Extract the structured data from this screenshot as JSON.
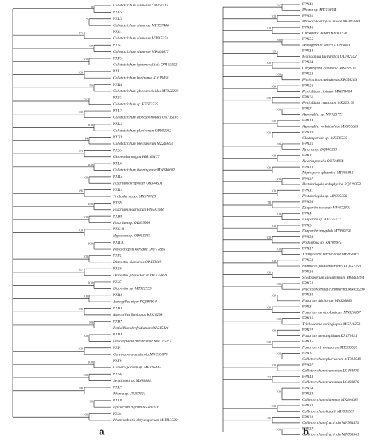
{
  "panels": [
    {
      "label": "a",
      "clades": [
        {
          "support": 8,
          "leaves": [
            "Colletotrichum siamense OR362512",
            "PXL5"
          ]
        },
        {
          "support": 7,
          "leaves": [
            "PXL3",
            "Colletotrichum siamense MH797486"
          ]
        },
        {
          "support": 65,
          "leaves": [
            "PXS1",
            "Colletotrichum siamense MT015274"
          ]
        },
        {
          "support": 97,
          "leaves": [
            "PXS2",
            "Colletotrichum siamense MK404677"
          ]
        },
        {
          "support": 100,
          "leaves": [
            "PXF3",
            "Colletotrichum hymenocallidis OP163552"
          ]
        },
        {
          "support": 100,
          "leaves": [
            "PXL1",
            "Colletotrichum boninense KJ619456"
          ]
        },
        {
          "support": 59,
          "leaves": [
            "PXR8",
            "Colletotrichum gloeosporioides MT322225"
          ]
        },
        {
          "support": 97,
          "leaves": [
            "PXS3",
            "Colletotrichum sp. EF672325"
          ]
        },
        {
          "support": 100,
          "leaves": [
            "PXL2",
            "Colletotrichum gloeosporioides ON715145"
          ]
        },
        {
          "support": 100,
          "leaves": [
            "PXL4",
            "Colletotrichum plurivorum OP902262"
          ]
        },
        {
          "support": 14,
          "leaves": [
            "PXX4",
            "Colletotrichum brevisporum MZ269314"
          ]
        },
        {
          "support": 92,
          "leaves": [
            "PXS5",
            "Glomerella magna HM163177"
          ]
        },
        {
          "support": 100,
          "leaves": [
            "PXL6",
            "Colletotrichum liaoningense MW386662"
          ]
        },
        {
          "support": 100,
          "leaves": [
            "PXR5",
            "Fusarium oxysporum OR344501"
          ]
        },
        {
          "support": 86,
          "leaves": [
            "PXR1",
            "Trichoderma sp. MK670718"
          ]
        },
        {
          "support": 100,
          "leaves": [
            "PXS9",
            "Fusarium incarnatum FN597588"
          ]
        },
        {
          "support": 100,
          "leaves": [
            "PXR6",
            "Fusarium sp. OR899990"
          ]
        },
        {
          "support": 100,
          "leaves": [
            "PXS10",
            "Hypocrea sp. OP055345"
          ]
        },
        {
          "support": 100,
          "leaves": [
            "PXR10",
            "Pestalotiopsis kenyana OR777885"
          ]
        },
        {
          "support": 100,
          "leaves": [
            "PXF2",
            "Diaporthe siamensis OP133669"
          ]
        },
        {
          "support": 67,
          "leaves": [
            "PXS6",
            "Diaporthe phaseolorum OK175859"
          ]
        },
        {
          "support": 100,
          "leaves": [
            "PXS7",
            "Diaporthe sp. MT322555"
          ]
        },
        {
          "support": 100,
          "leaves": [
            "PXR2",
            "Aspergillus niger PQ084904"
          ]
        },
        {
          "support": 100,
          "leaves": [
            "PXR3",
            "Aspergillus fumigatus KJ920298"
          ]
        },
        {
          "support": 89,
          "leaves": [
            "PXR7",
            "Penicillium brefeldianum OR215426"
          ]
        },
        {
          "support": 100,
          "leaves": [
            "PXR4",
            "Lasiodiplodia theobromae MW115077"
          ]
        },
        {
          "support": 100,
          "leaves": [
            "PXF1",
            "Corynespora cassiicola MW255073"
          ]
        },
        {
          "support": 100,
          "leaves": [
            "PXF9",
            "Camarosporium sp. MF326435"
          ]
        },
        {
          "support": 100,
          "leaves": [
            "PXS8",
            "Setophoma sp. MN888811"
          ]
        },
        {
          "support": 89,
          "leaves": [
            "PXL7",
            "Phoma sp. JN207321"
          ]
        },
        {
          "support": 98,
          "leaves": [
            "PXL8",
            "Epicoccum nigrum MZ467636"
          ]
        },
        {
          "support": 100,
          "leaves": [
            "PXS4",
            "Phanerodontia chrysosporium MH813339"
          ]
        }
      ]
    },
    {
      "label": "b",
      "clades": [
        {
          "support": 97,
          "leaves": [
            "FPX41",
            "Phoma sp. MK336394"
          ]
        },
        {
          "support": 100,
          "leaves": [
            "FPX31",
            "Phaeosphaeriopsis musae MG097888"
          ]
        },
        {
          "support": 100,
          "leaves": [
            "FPX46",
            "Curvularia lunata KX013226"
          ]
        },
        {
          "support": 68,
          "leaves": [
            "FPX55",
            "Arthopyrenia salicis LT796840"
          ]
        },
        {
          "support": 99,
          "leaves": [
            "FPX18",
            "Montagnula thailandica OL782142"
          ]
        },
        {
          "support": 100,
          "leaves": [
            "FPX24",
            "Corynespora cassiicola MK139711"
          ]
        },
        {
          "support": 100,
          "leaves": [
            "FPX53",
            "Phyllosticta capitalensis KR056283"
          ]
        },
        {
          "support": 100,
          "leaves": [
            "FPX56",
            "Penicillium citrinum MK878404"
          ]
        },
        {
          "support": 100,
          "leaves": [
            "FPX61",
            "Penicillium crustosum MK226178"
          ]
        },
        {
          "support": 100,
          "leaves": [
            "FPX7",
            "Aspergillus sp. MN725773"
          ]
        },
        {
          "support": 100,
          "leaves": [
            "FPX14",
            "Aspergillus welwitschiae MK450665"
          ]
        },
        {
          "support": 100,
          "leaves": [
            "FPX10",
            "Cladosporium sp. MK336539"
          ]
        },
        {
          "support": 99,
          "leaves": [
            "FPX21",
            "Xylaria sp. DQ480353"
          ]
        },
        {
          "support": 100,
          "leaves": [
            "FPX2",
            "Xylaria papulis ON724064"
          ]
        },
        {
          "support": 100,
          "leaves": [
            "FPX13",
            "Nigrospora sphaerica MT305812"
          ]
        },
        {
          "support": 100,
          "leaves": [
            "FPX37",
            "Pestalotiopsis endophytica PQ129358"
          ]
        },
        {
          "support": 100,
          "leaves": [
            "FPX11",
            "Pestalotiopsis sp. MN095556"
          ]
        },
        {
          "support": 78,
          "leaves": [
            "FPX58",
            "Diaporthe tectonae MW672401"
          ]
        },
        {
          "support": 100,
          "leaves": [
            "FPX4",
            "Diaporthe sp. KU375717"
          ]
        },
        {
          "support": 100,
          "leaves": [
            "FPX5",
            "Diaporthe amygdali MT990158"
          ]
        },
        {
          "support": 100,
          "leaves": [
            "FPX59",
            "Podospora sp. KR709975"
          ]
        },
        {
          "support": 100,
          "leaves": [
            "FPX17",
            "Triangularia verruculosa MH858965"
          ]
        },
        {
          "support": 100,
          "leaves": [
            "FPX50",
            "Humicola phialophoroides OQ552756"
          ]
        },
        {
          "support": 100,
          "leaves": [
            "FPX36",
            "Scedosporium apiospermum MH863494"
          ]
        },
        {
          "support": 100,
          "leaves": [
            "FPX52",
            "Plectosphaerella cucumerina MN856298"
          ]
        },
        {
          "support": 100,
          "leaves": [
            "FPX30",
            "Fusarium falciforme MN326663"
          ]
        },
        {
          "support": 100,
          "leaves": [
            "FPX8",
            "Fusarium keratoplasticum MN326657"
          ]
        },
        {
          "support": 100,
          "leaves": [
            "FPX16",
            "Trichoderma koningiopsis MG746253"
          ]
        },
        {
          "support": 99,
          "leaves": [
            "FPX22",
            "Fusarium nematophilum KX171631"
          ]
        },
        {
          "support": 100,
          "leaves": [
            "FPX15",
            "Fusarium cf. oxysporum MK336520"
          ]
        },
        {
          "support": 100,
          "leaves": [
            "FPX3",
            "Colletotrichum plurivorum MT318549"
          ]
        },
        {
          "support": 100,
          "leaves": [
            "FPX57",
            "Colletotrichum truncatum LC488875"
          ]
        },
        {
          "support": 72,
          "leaves": [
            "FPX43",
            "Colletotrichum truncatum LC488876"
          ]
        },
        {
          "support": 100,
          "leaves": [
            "FPX54",
            "FPX19",
            "Colletotrichum siamense MK404681"
          ]
        },
        {
          "support": 100,
          "leaves": [
            "FPX23",
            "Colletotrichum karstii MH036587"
          ]
        },
        {
          "support": 66,
          "leaves": [
            "FPX32",
            "Colletotrichum fructicola MN984479"
          ]
        },
        {
          "support": 100,
          "leaves": [
            "FPX27",
            "Colletotrichum fructicola MN055541"
          ]
        }
      ]
    }
  ]
}
